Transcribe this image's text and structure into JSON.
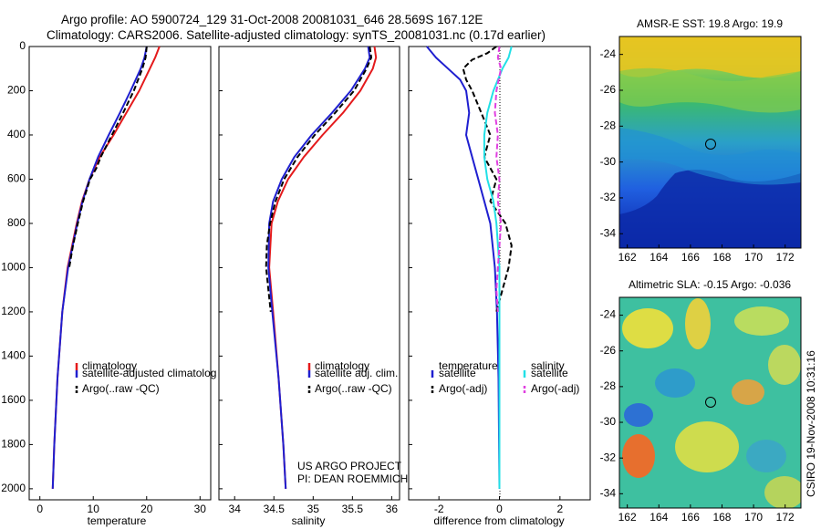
{
  "header": {
    "line1": "Argo profile: AO 5900724_129 31-Oct-2008 20081031_646 28.569S 167.12E",
    "line2": "Climatology: CARS2006. Satellite-adjusted climatology: synTS_20081031.nc (0.17d earlier)"
  },
  "colors": {
    "climatology": "#e41a1c",
    "satellite": "#1f1fd0",
    "argo": "#000000",
    "sat_salinity": "#22e0e6",
    "argo_salinity": "#e040e0"
  },
  "chart_data": [
    {
      "type": "line",
      "id": "temperature",
      "xlabel": "temperature",
      "ylabel": "",
      "xlim": [
        -2,
        32
      ],
      "ylim": [
        2050,
        0
      ],
      "xticks": [
        0,
        10,
        20,
        30
      ],
      "yticks": [
        0,
        200,
        400,
        600,
        800,
        1000,
        1200,
        1400,
        1600,
        1800,
        2000
      ],
      "legend": [
        "climatology",
        "satellite-adjusted climatolog",
        "Argo(..raw -QC)"
      ],
      "series": [
        {
          "name": "climatology",
          "depth": [
            0,
            50,
            100,
            200,
            300,
            400,
            500,
            600,
            700,
            800,
            1000,
            1200,
            1500,
            1800,
            2000
          ],
          "values": [
            22.4,
            21.6,
            20.6,
            18.6,
            16.2,
            13.8,
            11.2,
            9.3,
            7.9,
            6.9,
            5.2,
            4.2,
            3.3,
            2.7,
            2.4
          ]
        },
        {
          "name": "satellite-adjusted climatolog",
          "depth": [
            0,
            50,
            100,
            200,
            300,
            400,
            500,
            600,
            700,
            800,
            1000,
            1200,
            1500,
            1800,
            2000
          ],
          "values": [
            20.0,
            19.6,
            18.9,
            17.0,
            15.0,
            12.9,
            10.9,
            9.3,
            8.0,
            7.0,
            5.3,
            4.2,
            3.3,
            2.7,
            2.4
          ]
        },
        {
          "name": "Argo(..raw -QC)",
          "depth": [
            0,
            50,
            100,
            200,
            300,
            400,
            500,
            550,
            600,
            700,
            800,
            900,
            1000
          ],
          "values": [
            20.0,
            19.8,
            19.2,
            17.6,
            15.6,
            13.5,
            11.4,
            10.6,
            9.4,
            8.1,
            7.1,
            6.2,
            5.5
          ]
        }
      ]
    },
    {
      "type": "line",
      "id": "salinity",
      "xlabel": "salinity",
      "ylabel": "",
      "xlim": [
        33.8,
        36.1
      ],
      "ylim": [
        2050,
        0
      ],
      "xticks": [
        34,
        34.5,
        35,
        35.5,
        36
      ],
      "yticks": [],
      "legend": [
        "climatology",
        "satellite adj. clim.",
        "Argo(..raw -QC)"
      ],
      "annotations": [
        "US ARGO PROJECT",
        "PI: DEAN ROEMMICH"
      ],
      "series": [
        {
          "name": "climatology",
          "depth": [
            0,
            50,
            100,
            200,
            300,
            400,
            500,
            600,
            700,
            800,
            1000,
            1200,
            1500,
            1800,
            2000
          ],
          "values": [
            35.78,
            35.8,
            35.76,
            35.6,
            35.38,
            35.12,
            34.88,
            34.68,
            34.55,
            34.47,
            34.44,
            34.49,
            34.56,
            34.62,
            34.65
          ]
        },
        {
          "name": "satellite adj. clim.",
          "depth": [
            0,
            50,
            100,
            200,
            300,
            400,
            500,
            600,
            700,
            800,
            1000,
            1200,
            1500,
            1800,
            2000
          ],
          "values": [
            35.7,
            35.72,
            35.66,
            35.48,
            35.24,
            34.98,
            34.76,
            34.6,
            34.49,
            34.44,
            34.43,
            34.48,
            34.56,
            34.62,
            34.65
          ]
        },
        {
          "name": "Argo(..raw -QC)",
          "depth": [
            0,
            50,
            100,
            200,
            300,
            400,
            500,
            600,
            700,
            800,
            900,
            1000,
            1100,
            1200
          ],
          "values": [
            35.72,
            35.74,
            35.68,
            35.52,
            35.28,
            35.02,
            34.8,
            34.63,
            34.52,
            34.45,
            34.41,
            34.4,
            34.43,
            34.46
          ]
        }
      ]
    },
    {
      "type": "line",
      "id": "difference",
      "xlabel": "difference from climatology",
      "ylabel": "",
      "xlim": [
        -3,
        3
      ],
      "ylim": [
        2050,
        0
      ],
      "xticks": [
        -2,
        0,
        2
      ],
      "yticks": [],
      "legend_temperature_title": "temperature",
      "legend_salinity_title": "salinity",
      "legend": [
        "satellite",
        "Argo(-adj)",
        "satellite",
        "Argo(-adj)"
      ],
      "series": [
        {
          "name": "temperature satellite",
          "depth": [
            0,
            50,
            100,
            150,
            200,
            300,
            400,
            500,
            600,
            700,
            800,
            1000,
            1200,
            1500,
            2000
          ],
          "values": [
            -2.4,
            -2.1,
            -1.7,
            -1.3,
            -1.1,
            -1.0,
            -1.1,
            -0.9,
            -0.7,
            -0.5,
            -0.3,
            -0.15,
            -0.08,
            -0.03,
            0.0
          ]
        },
        {
          "name": "temperature Argo(-adj)",
          "depth": [
            0,
            30,
            60,
            100,
            150,
            200,
            300,
            400,
            500,
            600,
            700,
            800,
            900,
            1000,
            1100,
            1200
          ],
          "values": [
            -0.1,
            -0.4,
            -0.9,
            -1.2,
            -1.1,
            -0.9,
            -0.6,
            -0.3,
            -0.5,
            -0.1,
            -0.3,
            0.2,
            0.4,
            0.3,
            0.1,
            -0.1
          ]
        },
        {
          "name": "salinity satellite",
          "depth": [
            0,
            50,
            100,
            200,
            300,
            400,
            500,
            600,
            700,
            800,
            1000,
            1200,
            1500,
            2000
          ],
          "values": [
            0.4,
            0.3,
            0.1,
            -0.2,
            -0.4,
            -0.5,
            -0.5,
            -0.4,
            -0.2,
            -0.1,
            0.0,
            0.0,
            0.0,
            0.0
          ]
        },
        {
          "name": "salinity Argo(-adj)",
          "depth": [
            0,
            50,
            100,
            200,
            300,
            400,
            500,
            600,
            700,
            800,
            900,
            1000,
            1100,
            1200
          ],
          "values": [
            0.0,
            -0.05,
            0.05,
            -0.1,
            -0.15,
            -0.05,
            -0.1,
            0.0,
            -0.05,
            0.05,
            0.0,
            -0.05,
            -0.1,
            -0.05
          ]
        }
      ]
    }
  ],
  "maps": [
    {
      "title": "AMSR-E SST: 19.8 Argo: 19.9",
      "xticks": [
        162,
        164,
        166,
        168,
        170,
        172
      ],
      "yticks": [
        -24,
        -26,
        -28,
        -30,
        -32,
        -34
      ]
    },
    {
      "title": "Altimetric SLA: -0.15 Argo: -0.036",
      "xticks": [
        162,
        164,
        166,
        168,
        170,
        172
      ],
      "yticks": [
        -24,
        -26,
        -28,
        -30,
        -32,
        -34
      ]
    }
  ],
  "side_stamp": "CSIRO 19-Nov-2008 10:31:16"
}
